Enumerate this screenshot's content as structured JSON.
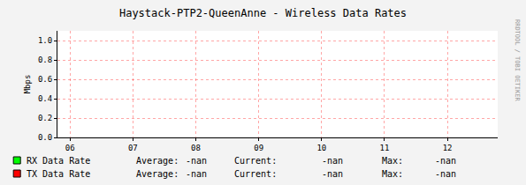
{
  "chart_data": {
    "type": "line",
    "title": "Haystack-PTP2-QueenAnne - Wireless Data Rates",
    "y_label": "Mbps",
    "x": [
      6,
      7,
      8,
      9,
      10,
      11,
      12
    ],
    "xlim": [
      5.8,
      12.8
    ],
    "xticks": [
      {
        "value": 6,
        "label": "06"
      },
      {
        "value": 7,
        "label": "07"
      },
      {
        "value": 8,
        "label": "08"
      },
      {
        "value": 9,
        "label": "09"
      },
      {
        "value": 10,
        "label": "10"
      },
      {
        "value": 11,
        "label": "11"
      },
      {
        "value": 12,
        "label": "12"
      }
    ],
    "ylim": [
      0,
      1.1
    ],
    "yticks": [
      {
        "value": 0,
        "label": "0.0"
      },
      {
        "value": 0.2,
        "label": "0.2"
      },
      {
        "value": 0.4,
        "label": "0.4"
      },
      {
        "value": 0.6,
        "label": "0.6"
      },
      {
        "value": 0.8,
        "label": "0.8"
      },
      {
        "value": 1,
        "label": "1.0"
      }
    ],
    "grid": true,
    "legend_columns": [
      "Average:",
      "Current:",
      "Max:"
    ],
    "series": [
      {
        "name": "RX Data Rate",
        "color": "#00ff00",
        "values": [
          null,
          null,
          null,
          null,
          null,
          null,
          null
        ],
        "stats": [
          "-nan",
          "-nan",
          "-nan"
        ]
      },
      {
        "name": "TX Data Rate",
        "color": "#ff0000",
        "values": [
          null,
          null,
          null,
          null,
          null,
          null,
          null
        ],
        "stats": [
          "-nan",
          "-nan",
          "-nan"
        ]
      }
    ],
    "watermark": "RRDTOOL / TOBI OETIKER"
  }
}
